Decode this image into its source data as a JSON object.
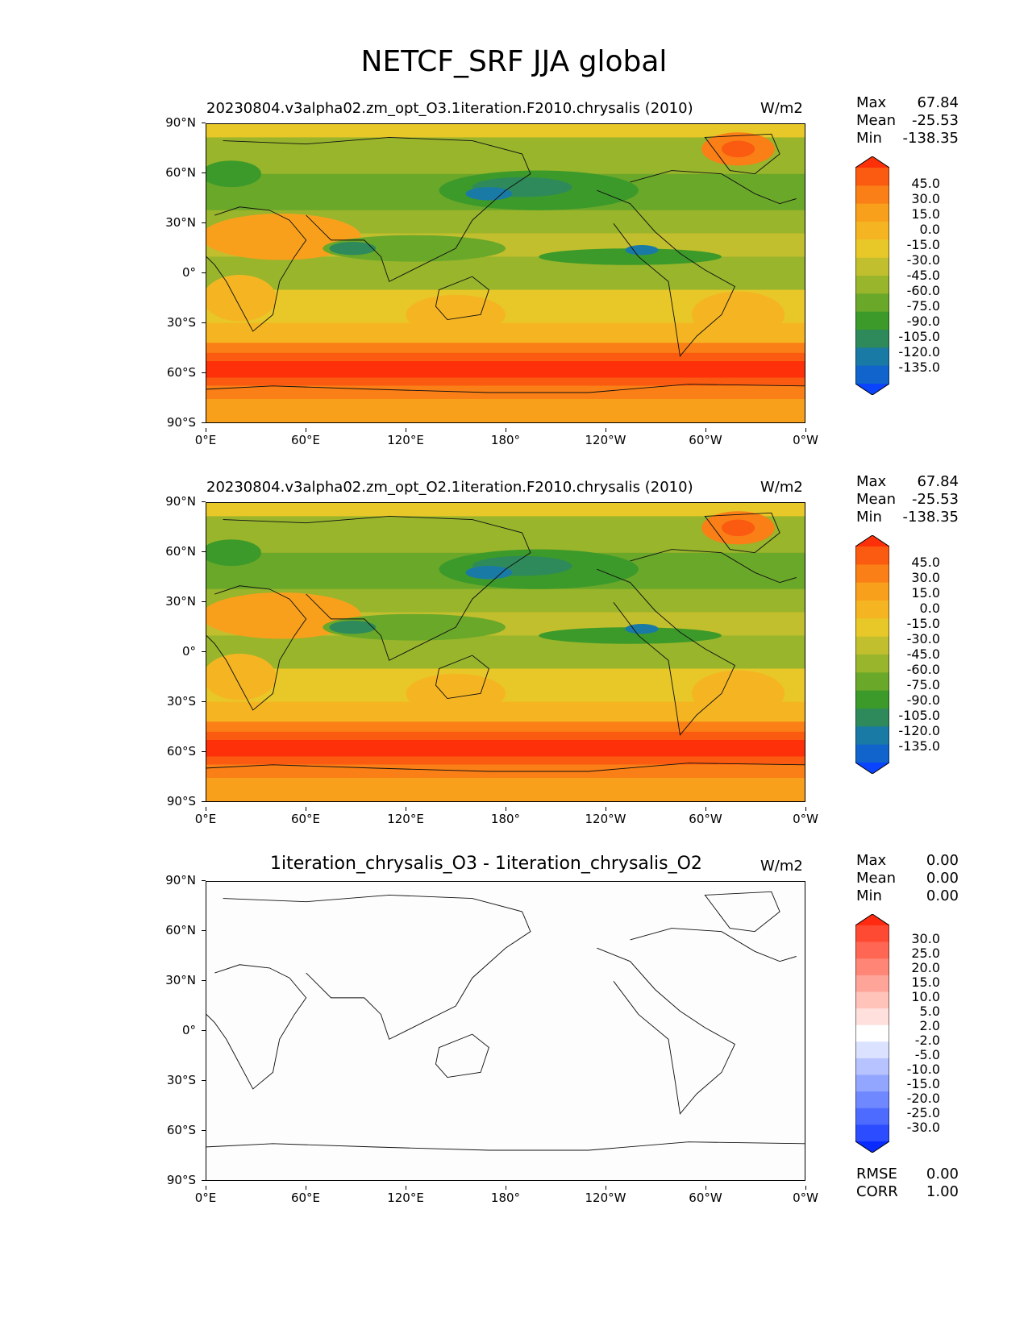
{
  "figure": {
    "title": "NETCF_SRF JJA global"
  },
  "axes": {
    "y_ticks": [
      "90°N",
      "60°N",
      "30°N",
      "0°",
      "30°S",
      "60°S",
      "90°S"
    ],
    "x_ticks": [
      "0°E",
      "60°E",
      "120°E",
      "180°",
      "120°W",
      "60°W",
      "0°W"
    ]
  },
  "colors": {
    "field_levels": [
      "#0a44ff",
      "#1064cc",
      "#1a7aa6",
      "#2e8a5a",
      "#3c9a2a",
      "#6aa82a",
      "#98b52c",
      "#c2bf2e",
      "#e8c828",
      "#f5b522",
      "#f8a01c",
      "#fa7f16",
      "#fb5b10",
      "#fd300a"
    ],
    "diff_levels": [
      "#0a2bff",
      "#2b4cff",
      "#4d6cff",
      "#6f88ff",
      "#93a6ff",
      "#b7c3ff",
      "#dbe2ff",
      "#ffffff",
      "#ffe0dc",
      "#ffc3ba",
      "#ffa498",
      "#ff8676",
      "#ff6754",
      "#ff4a33",
      "#ff2a10"
    ],
    "coast": "#111111"
  },
  "panels": [
    {
      "title": "20230804.v3alpha02.zm_opt_O3.1iteration.F2010.chrysalis (2010)",
      "units": "W/m2",
      "stats": {
        "max_label": "Max",
        "max": "67.84",
        "mean_label": "Mean",
        "mean": "-25.53",
        "min_label": "Min",
        "min": "-138.35"
      },
      "colorbar": [
        "45.0",
        "30.0",
        "15.0",
        "0.0",
        "-15.0",
        "-30.0",
        "-45.0",
        "-60.0",
        "-75.0",
        "-90.0",
        "-105.0",
        "-120.0",
        "-135.0"
      ]
    },
    {
      "title": "20230804.v3alpha02.zm_opt_O2.1iteration.F2010.chrysalis (2010)",
      "units": "W/m2",
      "stats": {
        "max_label": "Max",
        "max": "67.84",
        "mean_label": "Mean",
        "mean": "-25.53",
        "min_label": "Min",
        "min": "-138.35"
      },
      "colorbar": [
        "45.0",
        "30.0",
        "15.0",
        "0.0",
        "-15.0",
        "-30.0",
        "-45.0",
        "-60.0",
        "-75.0",
        "-90.0",
        "-105.0",
        "-120.0",
        "-135.0"
      ]
    },
    {
      "title": "1iteration_chrysalis_O3 - 1iteration_chrysalis_O2",
      "units": "W/m2",
      "stats": {
        "max_label": "Max",
        "max": "0.00",
        "mean_label": "Mean",
        "mean": "0.00",
        "min_label": "Min",
        "min": "0.00"
      },
      "colorbar": [
        "30.0",
        "25.0",
        "20.0",
        "15.0",
        "10.0",
        "5.0",
        "2.0",
        "-2.0",
        "-5.0",
        "-10.0",
        "-15.0",
        "-20.0",
        "-25.0",
        "-30.0"
      ],
      "extra_stats": {
        "rmse_label": "RMSE",
        "rmse": "0.00",
        "corr_label": "CORR",
        "corr": "1.00"
      }
    }
  ],
  "chart_data": {
    "type": "heatmap",
    "title": "NETCF_SRF JJA global",
    "variable": "NETCF_SRF",
    "season": "JJA",
    "region": "global",
    "units": "W/m2",
    "xlim": [
      0,
      360
    ],
    "ylim": [
      -90,
      90
    ],
    "zonal_profile_lat": [
      90,
      75,
      60,
      45,
      30,
      15,
      0,
      -15,
      -30,
      -45,
      -55,
      -60,
      -65,
      -75,
      -90
    ],
    "zonal_profile_value": [
      -20,
      -50,
      -70,
      -65,
      -30,
      -40,
      -45,
      -30,
      -15,
      5,
      35,
      55,
      30,
      5,
      0
    ],
    "panels": [
      {
        "name": "test",
        "max": 67.84,
        "mean": -25.53,
        "min": -138.35,
        "levels": [
          -135,
          -120,
          -105,
          -90,
          -75,
          -60,
          -45,
          -30,
          -15,
          0,
          15,
          30,
          45
        ]
      },
      {
        "name": "reference",
        "max": 67.84,
        "mean": -25.53,
        "min": -138.35,
        "levels": [
          -135,
          -120,
          -105,
          -90,
          -75,
          -60,
          -45,
          -30,
          -15,
          0,
          15,
          30,
          45
        ]
      },
      {
        "name": "difference",
        "max": 0.0,
        "mean": 0.0,
        "min": 0.0,
        "rmse": 0.0,
        "corr": 1.0,
        "levels": [
          -30,
          -25,
          -20,
          -15,
          -10,
          -5,
          -2,
          2,
          5,
          10,
          15,
          20,
          25,
          30
        ]
      }
    ]
  }
}
